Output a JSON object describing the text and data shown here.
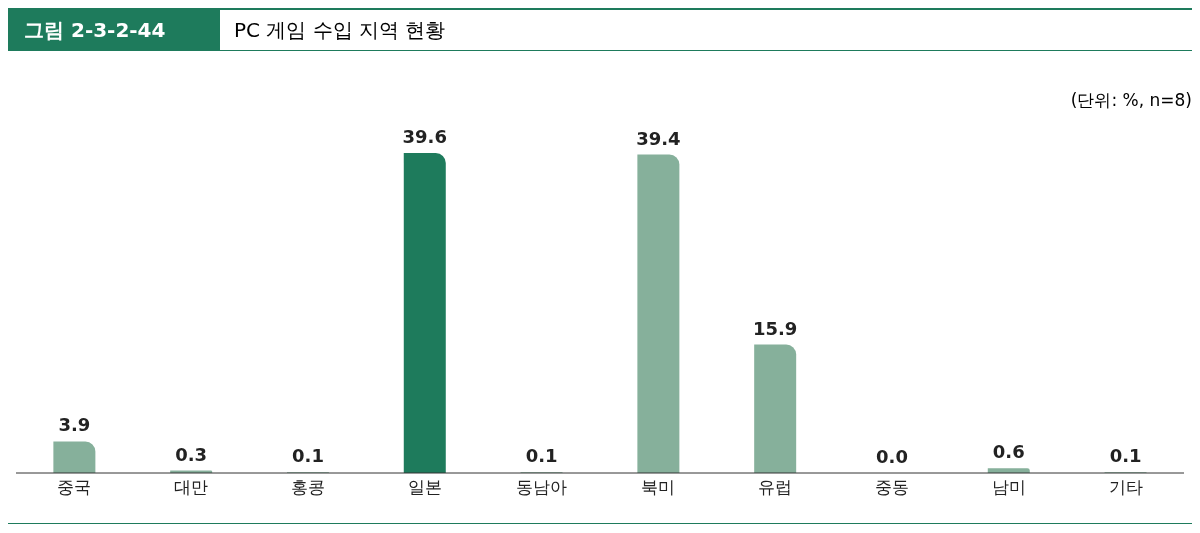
{
  "chart_data": {
    "type": "bar",
    "title": "PC 게임 수입 지역 현황",
    "annotations": [
      "그림 2-3-2-44",
      "(단위: %, n=8)"
    ],
    "categories": [
      "중국",
      "대만",
      "홍콩",
      "일본",
      "동남아",
      "북미",
      "유럽",
      "중동",
      "남미",
      "기타"
    ],
    "values": [
      3.9,
      0.3,
      0.1,
      39.6,
      0.1,
      39.4,
      15.9,
      0.0,
      0.6,
      0.1
    ],
    "value_labels": [
      "3.9",
      "0.3",
      "0.1",
      "39.6",
      "0.1",
      "39.4",
      "15.9",
      "0.0",
      "0.6",
      "0.1"
    ],
    "colors": [
      "#86b09b",
      "#86b09b",
      "#86b09b",
      "#1e7b5c",
      "#86b09b",
      "#86b09b",
      "#86b09b",
      "#86b09b",
      "#86b09b",
      "#86b09b"
    ],
    "grid": false,
    "legend": false
  }
}
